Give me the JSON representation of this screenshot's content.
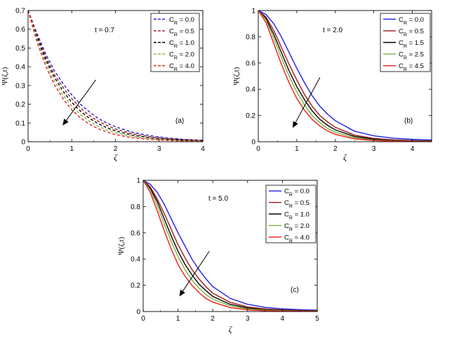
{
  "colors": {
    "blue": "#1f1fe6",
    "darkred": "#a01818",
    "black": "#000000",
    "green": "#7cb342",
    "red": "#ee1c1c",
    "axis": "#000000"
  },
  "chart_data": [
    {
      "type": "line",
      "panel_label": "(a)",
      "time_text": "t = 0.7",
      "xlabel": "ζ",
      "ylabel": "Ψ(ζ,t)",
      "xlim": [
        0,
        4
      ],
      "ylim": [
        0,
        0.7
      ],
      "xticks": [
        "0",
        "1",
        "2",
        "3",
        "4"
      ],
      "yticks": [
        "0",
        "0.1",
        "0.2",
        "0.3",
        "0.4",
        "0.5",
        "0.6",
        "0.7"
      ],
      "line_style": "dashed",
      "legend_title": "C",
      "legend_sub": "R",
      "legend_position": "top-right",
      "series": [
        {
          "name": "C_R = 0.0",
          "cr": "0.0",
          "color_key": "blue",
          "x": [
            0,
            0.2,
            0.4,
            0.6,
            0.8,
            1.0,
            1.2,
            1.4,
            1.6,
            1.8,
            2.0,
            2.4,
            2.8,
            3.2,
            3.6,
            4.0
          ],
          "y": [
            0.7,
            0.58,
            0.47,
            0.38,
            0.31,
            0.25,
            0.2,
            0.16,
            0.125,
            0.1,
            0.08,
            0.05,
            0.032,
            0.02,
            0.012,
            0.008
          ]
        },
        {
          "name": "C_R = 0.5",
          "cr": "0.5",
          "color_key": "darkred",
          "x": [
            0,
            0.2,
            0.4,
            0.6,
            0.8,
            1.0,
            1.2,
            1.4,
            1.6,
            1.8,
            2.0,
            2.4,
            2.8,
            3.2,
            3.6,
            4.0
          ],
          "y": [
            0.7,
            0.57,
            0.455,
            0.36,
            0.29,
            0.23,
            0.18,
            0.14,
            0.11,
            0.087,
            0.068,
            0.042,
            0.026,
            0.016,
            0.01,
            0.006
          ]
        },
        {
          "name": "C_R = 1.0",
          "cr": "1.0",
          "color_key": "black",
          "x": [
            0,
            0.2,
            0.4,
            0.6,
            0.8,
            1.0,
            1.2,
            1.4,
            1.6,
            1.8,
            2.0,
            2.4,
            2.8,
            3.2,
            3.6,
            4.0
          ],
          "y": [
            0.7,
            0.56,
            0.44,
            0.345,
            0.27,
            0.21,
            0.163,
            0.126,
            0.097,
            0.075,
            0.058,
            0.035,
            0.021,
            0.013,
            0.008,
            0.005
          ]
        },
        {
          "name": "C_R = 2.0",
          "cr": "2.0",
          "color_key": "green",
          "x": [
            0,
            0.2,
            0.4,
            0.6,
            0.8,
            1.0,
            1.2,
            1.4,
            1.6,
            1.8,
            2.0,
            2.4,
            2.8,
            3.2,
            3.6,
            4.0
          ],
          "y": [
            0.7,
            0.55,
            0.425,
            0.325,
            0.25,
            0.19,
            0.145,
            0.11,
            0.083,
            0.063,
            0.048,
            0.028,
            0.016,
            0.01,
            0.006,
            0.004
          ]
        },
        {
          "name": "C_R = 4.0",
          "cr": "4.0",
          "color_key": "red",
          "x": [
            0,
            0.2,
            0.4,
            0.6,
            0.8,
            1.0,
            1.2,
            1.4,
            1.6,
            1.8,
            2.0,
            2.4,
            2.8,
            3.2,
            3.6,
            4.0
          ],
          "y": [
            0.7,
            0.535,
            0.405,
            0.305,
            0.23,
            0.17,
            0.127,
            0.094,
            0.07,
            0.052,
            0.038,
            0.021,
            0.012,
            0.007,
            0.004,
            0.003
          ]
        }
      ],
      "arrow": {
        "from": [
          1.55,
          0.33
        ],
        "to": [
          0.8,
          0.09
        ]
      }
    },
    {
      "type": "line",
      "panel_label": "(b)",
      "time_text": "t = 2.0",
      "xlabel": "ζ",
      "ylabel": "Ψ(ζ,t)",
      "xlim": [
        0,
        4.5
      ],
      "ylim": [
        0,
        1
      ],
      "xticks": [
        "0",
        "1",
        "2",
        "3",
        "4"
      ],
      "yticks": [
        "0",
        "0.2",
        "0.4",
        "0.6",
        "0.8",
        "1"
      ],
      "line_style": "solid",
      "legend_title": "C",
      "legend_sub": "R",
      "legend_position": "top-right",
      "series": [
        {
          "name": "C_R = 0.0",
          "cr": "0.0",
          "color_key": "blue",
          "x": [
            0,
            0.2,
            0.4,
            0.6,
            0.8,
            1.0,
            1.2,
            1.4,
            1.6,
            1.8,
            2.0,
            2.5,
            3.0,
            3.5,
            4.0,
            4.5
          ],
          "y": [
            1.0,
            0.97,
            0.9,
            0.8,
            0.68,
            0.56,
            0.45,
            0.35,
            0.27,
            0.21,
            0.16,
            0.08,
            0.045,
            0.027,
            0.018,
            0.013
          ]
        },
        {
          "name": "C_R = 0.5",
          "cr": "0.5",
          "color_key": "darkred",
          "x": [
            0,
            0.2,
            0.4,
            0.6,
            0.8,
            1.0,
            1.2,
            1.4,
            1.6,
            1.8,
            2.0,
            2.5,
            3.0,
            3.5,
            4.0,
            4.5
          ],
          "y": [
            1.0,
            0.95,
            0.85,
            0.72,
            0.59,
            0.47,
            0.36,
            0.27,
            0.2,
            0.15,
            0.11,
            0.05,
            0.025,
            0.014,
            0.009,
            0.006
          ]
        },
        {
          "name": "C_R = 1.5",
          "cr": "1.5",
          "color_key": "black",
          "x": [
            0,
            0.2,
            0.4,
            0.6,
            0.8,
            1.0,
            1.2,
            1.4,
            1.6,
            1.8,
            2.0,
            2.5,
            3.0,
            3.5,
            4.0,
            4.5
          ],
          "y": [
            1.0,
            0.94,
            0.82,
            0.68,
            0.54,
            0.42,
            0.32,
            0.235,
            0.17,
            0.125,
            0.09,
            0.04,
            0.019,
            0.01,
            0.006,
            0.004
          ]
        },
        {
          "name": "C_R = 2.5",
          "cr": "2.5",
          "color_key": "green",
          "x": [
            0,
            0.2,
            0.4,
            0.6,
            0.8,
            1.0,
            1.2,
            1.4,
            1.6,
            1.8,
            2.0,
            2.5,
            3.0,
            3.5,
            4.0,
            4.5
          ],
          "y": [
            1.0,
            0.93,
            0.79,
            0.64,
            0.5,
            0.38,
            0.28,
            0.2,
            0.145,
            0.1,
            0.072,
            0.03,
            0.013,
            0.007,
            0.004,
            0.003
          ]
        },
        {
          "name": "C_R = 4.5",
          "cr": "4.5",
          "color_key": "red",
          "x": [
            0,
            0.2,
            0.4,
            0.6,
            0.8,
            1.0,
            1.2,
            1.4,
            1.6,
            1.8,
            2.0,
            2.5,
            3.0,
            3.5,
            4.0,
            4.5
          ],
          "y": [
            1.0,
            0.91,
            0.75,
            0.59,
            0.45,
            0.33,
            0.24,
            0.17,
            0.12,
            0.082,
            0.056,
            0.022,
            0.009,
            0.004,
            0.002,
            0.001
          ]
        }
      ],
      "arrow": {
        "from": [
          1.6,
          0.49
        ],
        "to": [
          0.9,
          0.11
        ]
      }
    },
    {
      "type": "line",
      "panel_label": "(c)",
      "time_text": "t = 5.0",
      "xlabel": "ζ",
      "ylabel": "Ψ(ζ,t)",
      "xlim": [
        0,
        5
      ],
      "ylim": [
        0,
        1
      ],
      "xticks": [
        "0",
        "1",
        "2",
        "3",
        "4",
        "5"
      ],
      "yticks": [
        "0",
        "0.2",
        "0.4",
        "0.6",
        "0.8",
        "1"
      ],
      "line_style": "solid",
      "legend_title": "C",
      "legend_sub": "R",
      "legend_position": "top-right",
      "series": [
        {
          "name": "C_R = 0.0",
          "cr": "0.0",
          "color_key": "blue",
          "x": [
            0,
            0.2,
            0.4,
            0.6,
            0.8,
            1.0,
            1.2,
            1.4,
            1.6,
            1.8,
            2.0,
            2.5,
            3.0,
            3.5,
            4.0,
            4.5,
            5.0
          ],
          "y": [
            1.0,
            0.97,
            0.91,
            0.82,
            0.71,
            0.6,
            0.5,
            0.4,
            0.32,
            0.25,
            0.19,
            0.1,
            0.055,
            0.032,
            0.02,
            0.014,
            0.01
          ]
        },
        {
          "name": "C_R = 0.5",
          "cr": "0.5",
          "color_key": "darkred",
          "x": [
            0,
            0.2,
            0.4,
            0.6,
            0.8,
            1.0,
            1.2,
            1.4,
            1.6,
            1.8,
            2.0,
            2.5,
            3.0,
            3.5,
            4.0,
            4.5,
            5.0
          ],
          "y": [
            1.0,
            0.95,
            0.86,
            0.75,
            0.63,
            0.51,
            0.41,
            0.32,
            0.25,
            0.19,
            0.14,
            0.07,
            0.035,
            0.02,
            0.012,
            0.008,
            0.006
          ]
        },
        {
          "name": "C_R = 1.0",
          "cr": "1.0",
          "color_key": "black",
          "x": [
            0,
            0.2,
            0.4,
            0.6,
            0.8,
            1.0,
            1.2,
            1.4,
            1.6,
            1.8,
            2.0,
            2.5,
            3.0,
            3.5,
            4.0,
            4.5,
            5.0
          ],
          "y": [
            1.0,
            0.94,
            0.84,
            0.71,
            0.58,
            0.46,
            0.36,
            0.28,
            0.21,
            0.16,
            0.115,
            0.055,
            0.027,
            0.015,
            0.009,
            0.006,
            0.004
          ]
        },
        {
          "name": "C_R = 2.0",
          "cr": "2.0",
          "color_key": "green",
          "x": [
            0,
            0.2,
            0.4,
            0.6,
            0.8,
            1.0,
            1.2,
            1.4,
            1.6,
            1.8,
            2.0,
            2.5,
            3.0,
            3.5,
            4.0,
            4.5,
            5.0
          ],
          "y": [
            1.0,
            0.93,
            0.81,
            0.67,
            0.54,
            0.42,
            0.32,
            0.24,
            0.18,
            0.13,
            0.095,
            0.043,
            0.02,
            0.011,
            0.006,
            0.004,
            0.003
          ]
        },
        {
          "name": "C_R = 4.0",
          "cr": "4.0",
          "color_key": "red",
          "x": [
            0,
            0.2,
            0.4,
            0.6,
            0.8,
            1.0,
            1.2,
            1.4,
            1.6,
            1.8,
            2.0,
            2.5,
            3.0,
            3.5,
            4.0,
            4.5,
            5.0
          ],
          "y": [
            1.0,
            0.91,
            0.77,
            0.62,
            0.48,
            0.36,
            0.27,
            0.2,
            0.145,
            0.1,
            0.072,
            0.03,
            0.013,
            0.006,
            0.003,
            0.002,
            0.001
          ]
        }
      ],
      "arrow": {
        "from": [
          1.9,
          0.46
        ],
        "to": [
          1.05,
          0.12
        ]
      }
    }
  ]
}
